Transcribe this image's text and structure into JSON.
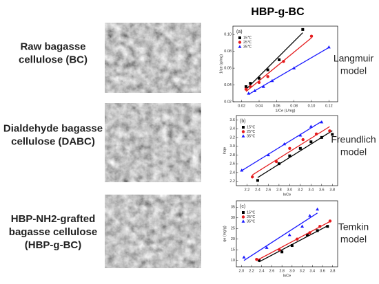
{
  "title": "HBP-g-BC",
  "samples": [
    [
      "Raw bagasse",
      "cellulose (BC)"
    ],
    [
      "Dialdehyde bagasse",
      "cellulose (DABC)"
    ],
    [
      "HBP-NH2-grafted",
      "bagasse cellulose",
      "(HBP-g-BC)"
    ]
  ],
  "models": [
    [
      "Langmuir",
      "model"
    ],
    [
      "Freundlich",
      "model"
    ],
    [
      "Temkin",
      "model"
    ]
  ],
  "chart_data": [
    {
      "type": "scatter",
      "label": "(a)",
      "xlabel": "1/Ce (L/mg)",
      "ylabel": "1/qe (g/mg)",
      "xlim": [
        0.01,
        0.13
      ],
      "ylim": [
        0.02,
        0.11
      ],
      "xticks": [
        0.02,
        0.04,
        0.06,
        0.08,
        {
          "value": 0.1,
          "label": "0.10"
        },
        0.12
      ],
      "yticks": [
        0.02,
        0.04,
        0.06,
        0.08,
        {
          "value": 0.1,
          "label": "0.10"
        }
      ],
      "series": [
        {
          "name": "15℃",
          "color": "#000000",
          "marker": "square",
          "x": [
            0.025,
            0.03,
            0.04,
            0.05,
            0.063,
            0.09
          ],
          "values": [
            0.038,
            0.042,
            0.048,
            0.058,
            0.07,
            0.106
          ]
        },
        {
          "name": "25℃",
          "color": "#e41a1c",
          "marker": "circle",
          "x": [
            0.025,
            0.03,
            0.04,
            0.05,
            0.068,
            0.1
          ],
          "values": [
            0.035,
            0.038,
            0.043,
            0.05,
            0.068,
            0.098
          ]
        },
        {
          "name": "35℃",
          "color": "#1a1aff",
          "marker": "triangle",
          "x": [
            0.028,
            0.035,
            0.045,
            0.055,
            0.08,
            0.12
          ],
          "values": [
            0.03,
            0.033,
            0.038,
            0.045,
            0.06,
            0.085
          ]
        }
      ]
    },
    {
      "type": "scatter",
      "label": "(b)",
      "xlabel": "lnCe",
      "ylabel": "lnqe",
      "xlim": [
        2.0,
        3.9
      ],
      "ylim": [
        2.1,
        3.7
      ],
      "xticks": [
        2.2,
        2.4,
        2.6,
        2.8,
        {
          "value": 3,
          "label": "3.0"
        },
        3.2,
        3.4,
        3.6,
        3.8
      ],
      "yticks": [
        2.2,
        2.4,
        2.6,
        2.8,
        {
          "value": 3,
          "label": "3.0"
        },
        3.2,
        3.4,
        3.6
      ],
      "series": [
        {
          "name": "15℃",
          "color": "#000000",
          "marker": "square",
          "x": [
            2.4,
            2.8,
            3.0,
            3.2,
            3.4,
            3.6,
            3.8
          ],
          "values": [
            2.22,
            2.6,
            2.78,
            2.95,
            3.1,
            3.2,
            3.27
          ]
        },
        {
          "name": "25℃",
          "color": "#e41a1c",
          "marker": "circle",
          "x": [
            2.3,
            2.75,
            3.0,
            3.25,
            3.5,
            3.75
          ],
          "values": [
            2.3,
            2.65,
            2.95,
            3.15,
            3.28,
            3.35
          ]
        },
        {
          "name": "35℃",
          "color": "#1a1aff",
          "marker": "triangle",
          "x": [
            2.1,
            2.6,
            2.9,
            3.2,
            3.4,
            3.6
          ],
          "values": [
            2.45,
            2.8,
            3.05,
            3.25,
            3.45,
            3.55
          ]
        }
      ]
    },
    {
      "type": "scatter",
      "label": "(c)",
      "xlabel": "lnCe",
      "ylabel": "qe (mg/g)",
      "xlim": [
        1.9,
        3.9
      ],
      "ylim": [
        7,
        38
      ],
      "xticks": [
        {
          "value": 2,
          "label": "2.0"
        },
        2.2,
        2.4,
        2.6,
        2.8,
        {
          "value": 3,
          "label": "3.0"
        },
        3.2,
        3.4,
        3.6,
        3.8
      ],
      "yticks": [
        10,
        15,
        20,
        25,
        30,
        35
      ],
      "series": [
        {
          "name": "15℃",
          "color": "#000000",
          "marker": "square",
          "x": [
            2.35,
            2.8,
            3.0,
            3.3,
            3.5,
            3.7
          ],
          "values": [
            10,
            14,
            17,
            22,
            24,
            26
          ]
        },
        {
          "name": "25℃",
          "color": "#e41a1c",
          "marker": "circle",
          "x": [
            2.3,
            2.75,
            3.1,
            3.35,
            3.55,
            3.75
          ],
          "values": [
            10.5,
            15,
            20,
            23,
            26,
            28.5
          ]
        },
        {
          "name": "35℃",
          "color": "#1a1aff",
          "marker": "triangle",
          "x": [
            2.05,
            2.5,
            2.95,
            3.2,
            3.35,
            3.5
          ],
          "values": [
            11.5,
            16,
            22,
            26,
            31,
            34
          ]
        }
      ]
    }
  ]
}
